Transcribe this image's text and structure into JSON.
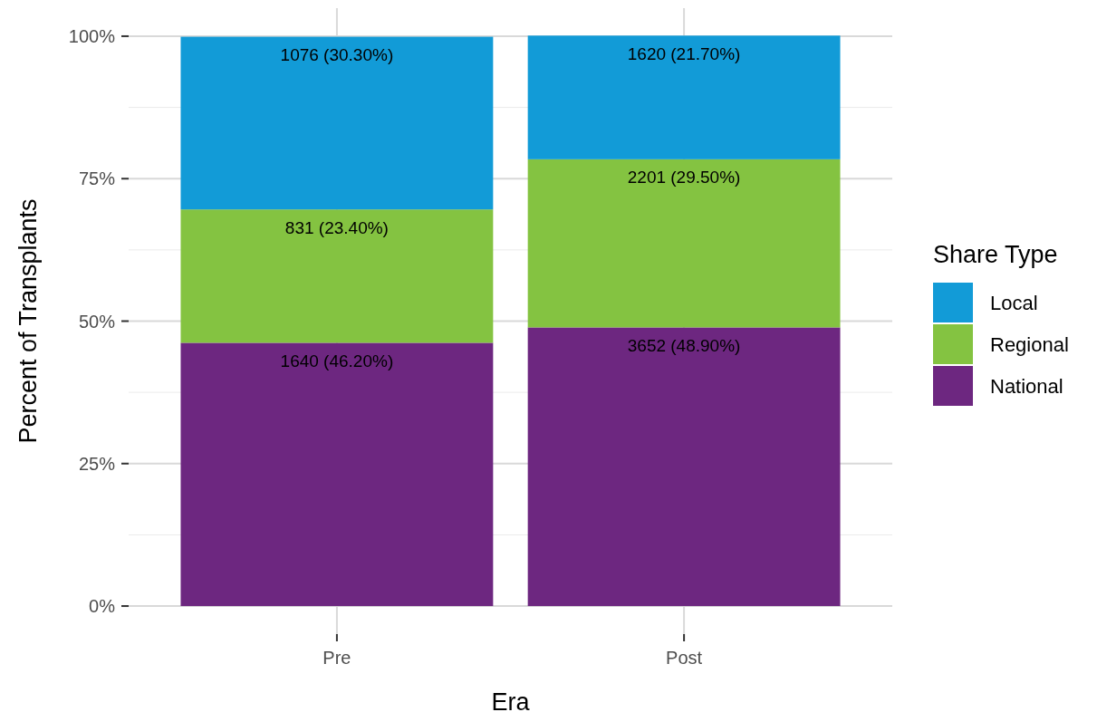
{
  "chart_data": {
    "type": "bar",
    "stacked": true,
    "xlabel": "Era",
    "ylabel": "Percent of Transplants",
    "legend_title": "Share Type",
    "legend": "right",
    "categories": [
      "Pre",
      "Post"
    ],
    "series": [
      {
        "name": "National",
        "color": "#6d2780",
        "values": [
          46.2,
          48.9
        ],
        "value_labels": [
          "1640 (46.20%)",
          "3652 (48.90%)"
        ]
      },
      {
        "name": "Regional",
        "color": "#84c341",
        "values": [
          23.4,
          29.5
        ],
        "value_labels": [
          "831 (23.40%)",
          "2201 (29.50%)"
        ]
      },
      {
        "name": "Local",
        "color": "#129bd7",
        "values": [
          30.3,
          21.7
        ],
        "value_labels": [
          "1076 (30.30%)",
          "1620 (21.70%)"
        ]
      }
    ],
    "ylim": [
      -5,
      105
    ],
    "yticks": [
      {
        "value": 0,
        "label": "0%"
      },
      {
        "value": 25,
        "label": "25%"
      },
      {
        "value": 50,
        "label": "50%"
      },
      {
        "value": 75,
        "label": "75%"
      },
      {
        "value": 100,
        "label": "100%"
      }
    ],
    "grid": true
  }
}
